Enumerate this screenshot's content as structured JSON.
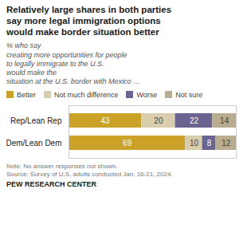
{
  "chart_data": {
    "type": "bar",
    "orientation": "horizontal",
    "stacked": true,
    "title": "Relatively large shares in both parties\nsay more legal immigration options\nwould make border situation better",
    "subtitle": "% who say\ncreating more opportunities for people\nto legally immigrate to the U.S.\nwould make the\nsituation at the U.S. border with Mexico …",
    "categories": [
      "Rep/Lean Rep",
      "Dem/Lean Dem"
    ],
    "series": [
      {
        "name": "Better",
        "color": "#C9A227",
        "values": [
          43,
          69
        ]
      },
      {
        "name": "Not much difference",
        "color": "#D8CEAD",
        "values": [
          20,
          10
        ]
      },
      {
        "name": "Worse",
        "color": "#6B6390",
        "values": [
          22,
          8
        ]
      },
      {
        "name": "Not sure",
        "color": "#B8AD90",
        "values": [
          14,
          12
        ]
      }
    ],
    "xlim": [
      0,
      99
    ],
    "data_labels": true,
    "tick_labels": "y",
    "grid": false,
    "legend": "top",
    "annotations": [
      "Note: No answer responses not shown.",
      "Source: Survey of U.S. adults conducted Jan. 16-21, 2024.",
      "PEW RESEARCH CENTER"
    ]
  }
}
